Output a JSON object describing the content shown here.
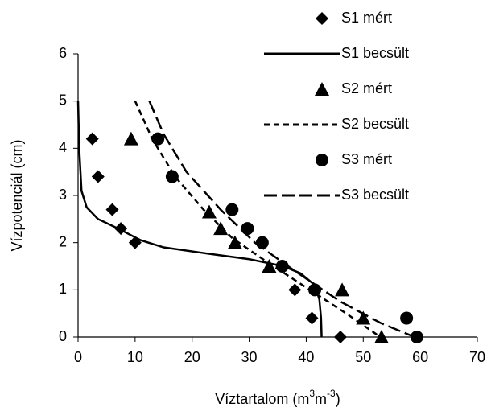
{
  "chart_data": {
    "type": "scatter-line",
    "x_label": [
      "Víztartalom (m",
      "3",
      "m",
      "-3",
      ")"
    ],
    "y_label": "Vízpotenciál (cm)",
    "xlim": [
      0,
      70
    ],
    "xticks": [
      0,
      10,
      20,
      30,
      40,
      50,
      60,
      70
    ],
    "ylim": [
      0,
      6
    ],
    "yticks": [
      0,
      1,
      2,
      3,
      4,
      5,
      6
    ],
    "grid": false,
    "legend": "right",
    "series": [
      {
        "name": "S1 mért",
        "kind": "markers",
        "marker": "diamond",
        "color": "#000000",
        "x": [
          2.5,
          3.5,
          6,
          7.5,
          10,
          38,
          41,
          46
        ],
        "values": [
          4.2,
          3.4,
          2.7,
          2.3,
          2.0,
          1.0,
          0.4,
          0
        ]
      },
      {
        "name": "S1 becsült",
        "kind": "line",
        "dash": "solid",
        "color": "#000000",
        "x": [
          0,
          0.2,
          0.6,
          1.5,
          3.5,
          7,
          11,
          15,
          22,
          30,
          36,
          39,
          41.5,
          42.3,
          42.6,
          42.7
        ],
        "values": [
          5,
          4,
          3.1,
          2.75,
          2.5,
          2.3,
          2.05,
          1.9,
          1.78,
          1.65,
          1.5,
          1.35,
          1.1,
          0.8,
          0.4,
          0
        ]
      },
      {
        "name": "S2 mért",
        "kind": "markers",
        "marker": "triangle",
        "color": "#000000",
        "x": [
          9.3,
          23,
          25,
          27.5,
          33.5,
          46.3,
          50,
          53.2
        ],
        "values": [
          4.2,
          2.65,
          2.3,
          2.0,
          1.5,
          1.0,
          0.4,
          0
        ]
      },
      {
        "name": "S2 becsült",
        "kind": "line",
        "dash": "short",
        "color": "#000000",
        "x": [
          10,
          13,
          17,
          22,
          27,
          33,
          40,
          47,
          53
        ],
        "values": [
          5,
          4.2,
          3.4,
          2.7,
          2.1,
          1.6,
          1.05,
          0.5,
          0
        ]
      },
      {
        "name": "S3 mért",
        "kind": "markers",
        "marker": "circle",
        "color": "#000000",
        "x": [
          14,
          16.5,
          27,
          29.7,
          32.3,
          35.8,
          41.5,
          57.6,
          59.4
        ],
        "values": [
          4.2,
          3.4,
          2.7,
          2.3,
          2.0,
          1.5,
          1.0,
          0.4,
          0
        ]
      },
      {
        "name": "S3 becsült",
        "kind": "line",
        "dash": "long",
        "color": "#000000",
        "x": [
          12.5,
          15,
          19,
          25,
          31,
          38,
          46,
          53,
          59
        ],
        "values": [
          5,
          4.3,
          3.5,
          2.7,
          2.0,
          1.4,
          0.75,
          0.3,
          0
        ]
      }
    ]
  }
}
